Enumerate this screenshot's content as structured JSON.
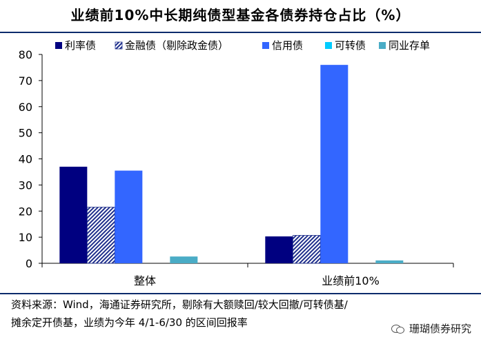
{
  "title": "业绩前10%中长期纯债型基金各债券持仓占比（%）",
  "footnote": {
    "line1": "资料来源：Wind，海通证券研究所，剔除有大额赎回/较大回撤/可转债基/",
    "line2": "摊余定开债基，业绩为今年 4/1-6/30 的区间回报率"
  },
  "watermark": {
    "text": "珊瑚债券研究",
    "icon": "wechat-icon"
  },
  "chart_data": {
    "type": "bar",
    "categories": [
      "整体",
      "业绩前10%"
    ],
    "ylim": [
      0,
      80
    ],
    "yticks": [
      0,
      10,
      20,
      30,
      40,
      50,
      60,
      70,
      80
    ],
    "grid": false,
    "legend_position": "top",
    "series": [
      {
        "name": "利率债",
        "values": [
          37,
          10.3
        ],
        "color": "#000080",
        "pattern": "solid"
      },
      {
        "name": "金融债（剔除政金债）",
        "values": [
          21.5,
          10.7
        ],
        "color": "#1f2f8c",
        "pattern": "hatched"
      },
      {
        "name": "信用债",
        "values": [
          35.5,
          76
        ],
        "color": "#3366ff",
        "pattern": "solid"
      },
      {
        "name": "可转债",
        "values": [
          0,
          0
        ],
        "color": "#00ccff",
        "pattern": "solid"
      },
      {
        "name": "同业存单",
        "values": [
          2.6,
          1.1
        ],
        "color": "#4aacc6",
        "pattern": "solid"
      }
    ]
  }
}
